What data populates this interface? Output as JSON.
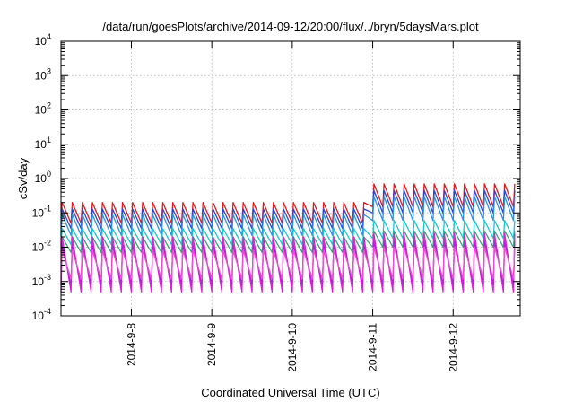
{
  "chart_data": {
    "type": "line",
    "title": "/data/run/goesPlots/archive/2014-09-12/20:00/flux/../bryn/5daysMars.plot",
    "xlabel": "Coordinated Universal Time (UTC)",
    "ylabel": "cSv/day",
    "yscale": "log",
    "ylim": [
      0.0001,
      10000
    ],
    "xlim": [
      "2014-09-07 03:00",
      "2014-09-12 20:00"
    ],
    "grid": true,
    "legend": "none",
    "x_ticks": [
      "2014-9-8",
      "2014-9-9",
      "2014-9-10",
      "2014-9-11",
      "2014-9-12"
    ],
    "y_ticks": [
      {
        "value": 0.0001,
        "base": "10",
        "exp": "-4"
      },
      {
        "value": 0.001,
        "base": "10",
        "exp": "-3"
      },
      {
        "value": 0.01,
        "base": "10",
        "exp": "-2"
      },
      {
        "value": 0.1,
        "base": "10",
        "exp": "-1"
      },
      {
        "value": 1,
        "base": "10",
        "exp": "0"
      },
      {
        "value": 10,
        "base": "10",
        "exp": "1"
      },
      {
        "value": 100,
        "base": "10",
        "exp": "2"
      },
      {
        "value": 1000,
        "base": "10",
        "exp": "3"
      },
      {
        "value": 10000,
        "base": "10",
        "exp": "4"
      }
    ],
    "cycle_hours": 3,
    "regime_change": "2014-09-11 00:00",
    "series": [
      {
        "color": "#e8161a",
        "before": {
          "peak": 0.2,
          "trough": 0.05
        },
        "after": {
          "peak": 0.7,
          "trough": 0.15
        }
      },
      {
        "color": "#2646d6",
        "before": {
          "peak": 0.13,
          "trough": 0.035
        },
        "after": {
          "peak": 0.45,
          "trough": 0.1
        }
      },
      {
        "color": "#2f8ee6",
        "before": {
          "peak": 0.09,
          "trough": 0.022
        },
        "after": {
          "peak": 0.3,
          "trough": 0.06
        }
      },
      {
        "color": "#17c9c9",
        "before": {
          "peak": 0.035,
          "trough": 0.012
        },
        "after": {
          "peak": 0.06,
          "trough": 0.018
        }
      },
      {
        "color": "#3aa37a",
        "before": {
          "peak": 0.02,
          "trough": 0.007
        },
        "after": {
          "peak": 0.03,
          "trough": 0.01
        }
      },
      {
        "color": "#e21fd6",
        "before": {
          "peak": 0.02,
          "trough": 0.0005
        },
        "after": {
          "peak": 0.025,
          "trough": 0.0005
        }
      },
      {
        "color": "#b81fe0",
        "before": {
          "peak": 0.012,
          "trough": 0.0008
        },
        "after": {
          "peak": 0.015,
          "trough": 0.0008
        }
      },
      {
        "color": "#f04fd0",
        "before": {
          "peak": 0.008,
          "trough": 0.0012
        },
        "after": {
          "peak": 0.01,
          "trough": 0.0012
        }
      }
    ]
  }
}
